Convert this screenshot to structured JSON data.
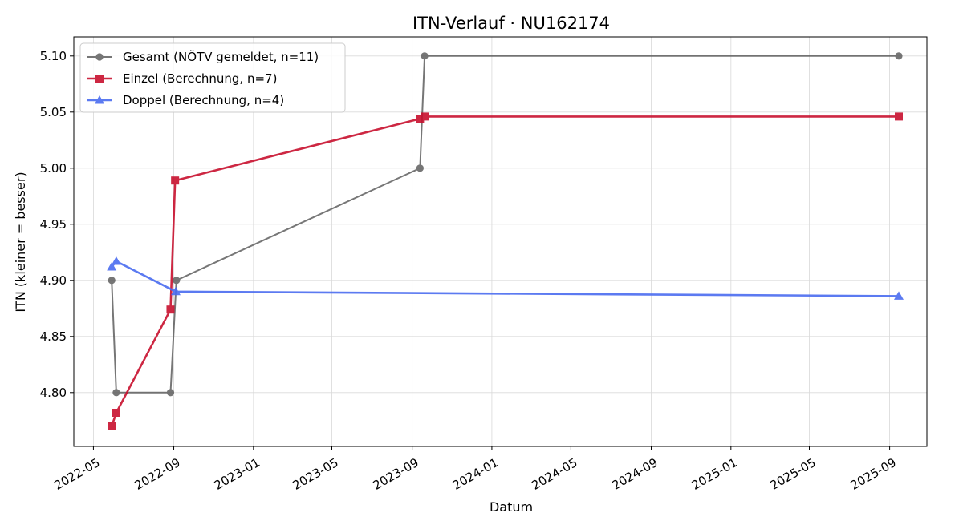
{
  "chart_data": {
    "type": "line",
    "title": "ITN-Verlauf · NU162174",
    "xlabel": "Datum",
    "ylabel": "ITN  (kleiner = besser)",
    "x_axis_type": "date",
    "xlim": [
      "2022-04-01",
      "2025-10-28"
    ],
    "ylim": [
      4.752,
      5.117
    ],
    "x_ticks": [
      "2022-05-01",
      "2022-09-01",
      "2023-01-01",
      "2023-05-01",
      "2023-09-01",
      "2024-01-01",
      "2024-05-01",
      "2024-09-01",
      "2025-01-01",
      "2025-05-01",
      "2025-09-01"
    ],
    "x_tick_labels": [
      "2022-05",
      "2022-09",
      "2023-01",
      "2023-05",
      "2023-09",
      "2024-01",
      "2024-05",
      "2024-09",
      "2025-01",
      "2025-05",
      "2025-09"
    ],
    "y_ticks": [
      4.8,
      4.85,
      4.9,
      4.95,
      5.0,
      5.05,
      5.1
    ],
    "y_tick_labels": [
      "4.80",
      "4.85",
      "4.90",
      "4.95",
      "5.00",
      "5.05",
      "5.10"
    ],
    "grid": true,
    "legend_position": "top-left",
    "series": [
      {
        "name": "Gesamt (NÖTV gemeldet, n=11)",
        "color": "#555555",
        "marker": "circle",
        "x": [
          "2022-05-29",
          "2022-06-05",
          "2022-08-27",
          "2022-09-05",
          "2023-09-13",
          "2023-09-20",
          "2025-09-15"
        ],
        "y": [
          4.9,
          4.8,
          4.8,
          4.9,
          5.0,
          5.1,
          5.1
        ]
      },
      {
        "name": "Einzel (Berechnung, n=7)",
        "color": "#c8102e",
        "marker": "square",
        "x": [
          "2022-05-29",
          "2022-06-05",
          "2022-08-27",
          "2022-09-03",
          "2023-09-13",
          "2023-09-20",
          "2025-09-15"
        ],
        "y": [
          4.77,
          4.782,
          4.874,
          4.989,
          5.044,
          5.046,
          5.046
        ]
      },
      {
        "name": "Doppel (Berechnung, n=4)",
        "color": "#4a6cf0",
        "marker": "triangle",
        "x": [
          "2022-05-29",
          "2022-06-05",
          "2022-09-04",
          "2025-09-15"
        ],
        "y": [
          4.912,
          4.917,
          4.89,
          4.886
        ]
      }
    ]
  }
}
